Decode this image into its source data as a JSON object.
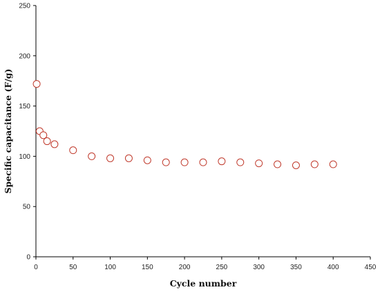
{
  "chart_data": {
    "type": "scatter",
    "title": "",
    "xlabel": "Cycle number",
    "ylabel": "Specific capacitance (F/g)",
    "xlim": [
      0,
      450
    ],
    "ylim": [
      0,
      250
    ],
    "x_ticks": [
      0,
      50,
      100,
      150,
      200,
      250,
      300,
      350,
      400,
      450
    ],
    "y_ticks": [
      0,
      50,
      100,
      150,
      200,
      250
    ],
    "grid": false,
    "marker": "open-circle",
    "marker_color": "#c0392b",
    "series": [
      {
        "x": [
          1,
          5,
          10,
          15,
          25,
          50,
          75,
          100,
          125,
          150,
          175,
          200,
          225,
          250,
          275,
          300,
          325,
          350,
          375,
          400
        ],
        "y": [
          172,
          125,
          121,
          115,
          112,
          106,
          100,
          98,
          98,
          96,
          94,
          94,
          94,
          95,
          94,
          93,
          92,
          91,
          92,
          92
        ]
      }
    ]
  }
}
